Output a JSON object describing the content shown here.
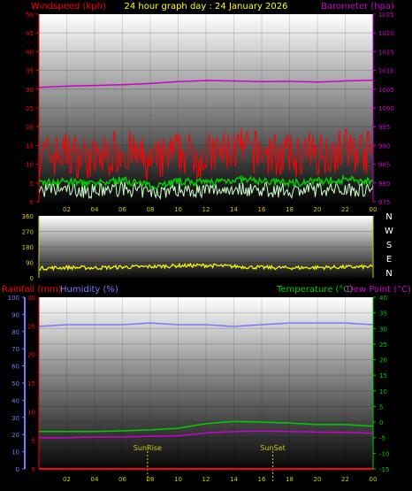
{
  "colors": {
    "windspeed": "#ff0000",
    "windavg": "#00cc00",
    "gust": "#ccffcc",
    "barometer": "#cc00cc",
    "direction": "#ffff00",
    "rainfall": "#ff0000",
    "humidity": "#7777ff",
    "temperature": "#00cc00",
    "dewpoint": "#cc00cc",
    "title": "#ffff00",
    "axisYellow": "#cccc00",
    "white": "#ffffff"
  },
  "chart_data": [
    {
      "type": "line",
      "title": "24 hour graph day : 24 January 2026",
      "ylabel_left": "Windspeed (kph)",
      "ylabel_right": "Barometer (hpa)",
      "ylim_left": [
        0,
        50
      ],
      "ylim_right": [
        975,
        1025
      ],
      "yticks_left": [
        "0",
        "5",
        "10",
        "15",
        "20",
        "25",
        "30",
        "35",
        "40",
        "45",
        "50"
      ],
      "yticks_right": [
        "975",
        "980",
        "985",
        "990",
        "995",
        "1000",
        "1005",
        "1010",
        "1015",
        "1020",
        "1025"
      ],
      "x_ticks": [
        "02",
        "04",
        "06",
        "08",
        "10",
        "12",
        "14",
        "16",
        "18",
        "20",
        "22",
        "00"
      ],
      "series": [
        {
          "name": "Windspeed (kph)",
          "axis": "left",
          "x": [
            0,
            2,
            4,
            6,
            8,
            10,
            12,
            14,
            16,
            18,
            20,
            22,
            24
          ],
          "values": [
            12,
            13,
            11,
            14,
            10,
            13,
            12,
            14,
            13,
            12,
            13,
            14,
            13
          ]
        },
        {
          "name": "Barometer (hpa)",
          "axis": "right",
          "x": [
            0,
            2,
            4,
            6,
            8,
            10,
            12,
            14,
            16,
            18,
            20,
            22,
            24
          ],
          "values": [
            1005.5,
            1005.8,
            1006,
            1006.2,
            1006.5,
            1007,
            1007.3,
            1007.2,
            1007,
            1007.1,
            1006.9,
            1007.2,
            1007.4
          ]
        }
      ]
    },
    {
      "type": "scatter",
      "ylabel_right": "N W S E N",
      "ylim": [
        0,
        360
      ],
      "yticks": [
        "0",
        "90",
        "180",
        "270",
        "360"
      ],
      "compass": [
        "N",
        "W",
        "S",
        "E",
        "N"
      ],
      "series": [
        {
          "name": "Wind direction",
          "x": [
            0,
            2,
            4,
            6,
            8,
            10,
            12,
            14,
            16,
            18,
            20,
            22,
            24
          ],
          "values": [
            55,
            60,
            58,
            62,
            65,
            70,
            72,
            66,
            60,
            58,
            60,
            62,
            64
          ]
        }
      ]
    },
    {
      "type": "line",
      "ylabel_left_1": "Rainfall (mm)",
      "ylabel_left_2": "Humidity (%)",
      "ylabel_right_1": "Temperature (°C)",
      "ylabel_right_2": "Dew Point (°C)",
      "ylim_humidity": [
        0,
        100
      ],
      "ylim_rain": [
        0,
        30
      ],
      "ylim_temp": [
        -15,
        40
      ],
      "yticks_humidity": [
        "0",
        "10",
        "20",
        "30",
        "40",
        "50",
        "60",
        "70",
        "80",
        "90",
        "100"
      ],
      "yticks_rain": [
        "0",
        "5",
        "10",
        "15",
        "20",
        "25",
        "30"
      ],
      "yticks_temp": [
        "-15",
        "-10",
        "-5",
        "0",
        "5",
        "10",
        "15",
        "20",
        "25",
        "30",
        "35",
        "40"
      ],
      "x_ticks": [
        "02",
        "04",
        "06",
        "08",
        "10",
        "12",
        "14",
        "16",
        "18",
        "20",
        "22",
        "00"
      ],
      "sunrise": {
        "label": "SunRise",
        "x": 7.8
      },
      "sunset": {
        "label": "SunSet",
        "x": 16.8
      },
      "series": [
        {
          "name": "Rainfall (mm)",
          "axis": "rain",
          "x": [
            0,
            24
          ],
          "values": [
            0,
            0
          ]
        },
        {
          "name": "Humidity (%)",
          "axis": "humidity",
          "x": [
            0,
            2,
            4,
            6,
            8,
            10,
            12,
            14,
            16,
            18,
            20,
            22,
            24
          ],
          "values": [
            83,
            84,
            84,
            84,
            85,
            84,
            84,
            83,
            84,
            85,
            85,
            85,
            84
          ]
        },
        {
          "name": "Temperature (°C)",
          "axis": "temp",
          "x": [
            0,
            2,
            4,
            6,
            8,
            10,
            12,
            14,
            16,
            18,
            20,
            22,
            24
          ],
          "values": [
            -3,
            -3,
            -3,
            -2.8,
            -2.5,
            -2,
            -0.5,
            0.2,
            0,
            -0.3,
            -0.8,
            -0.8,
            -1.3
          ]
        },
        {
          "name": "Dew Point (°C)",
          "axis": "temp",
          "x": [
            0,
            2,
            4,
            6,
            8,
            10,
            12,
            14,
            16,
            18,
            20,
            22,
            24
          ],
          "values": [
            -5,
            -5,
            -4.8,
            -4.8,
            -4.6,
            -4.4,
            -3.5,
            -3,
            -2.9,
            -3,
            -3.2,
            -3.3,
            -3.6
          ]
        }
      ]
    }
  ]
}
